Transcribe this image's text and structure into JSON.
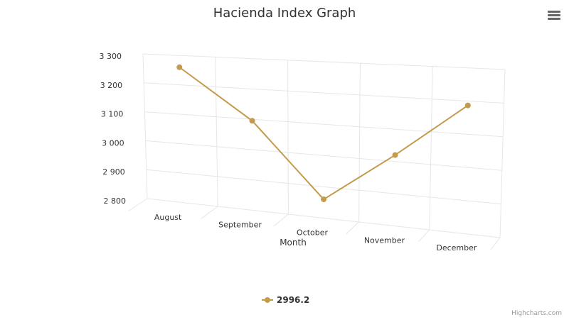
{
  "chart_data": {
    "type": "line",
    "title": "Hacienda Index Graph",
    "x_label": "Month",
    "categories": [
      "August",
      "September",
      "October",
      "November",
      "December"
    ],
    "series": [
      {
        "name": "2996.2",
        "color": "#c49a4c",
        "values": [
          3260,
          3095,
          2860,
          3020,
          3187
        ]
      }
    ],
    "ylim": [
      2800,
      3300
    ],
    "yticks": [
      {
        "value": 2800,
        "label": "2 800"
      },
      {
        "value": 2900,
        "label": "2 900"
      },
      {
        "value": 3000,
        "label": "3 000"
      },
      {
        "value": 3100,
        "label": "3 100"
      },
      {
        "value": 3200,
        "label": "3 200"
      },
      {
        "value": 3300,
        "label": "3 300"
      }
    ],
    "grid": true,
    "credits": "Highcharts.com"
  }
}
